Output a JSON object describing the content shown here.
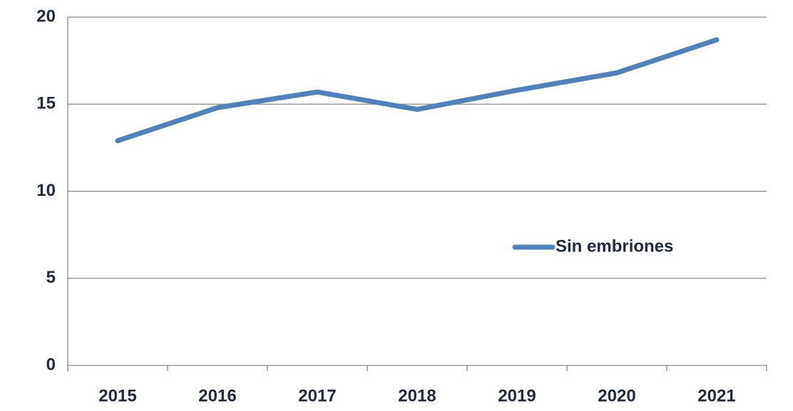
{
  "chart_data": {
    "type": "line",
    "categories": [
      "2015",
      "2016",
      "2017",
      "2018",
      "2019",
      "2020",
      "2021"
    ],
    "series": [
      {
        "name": "Sin embriones",
        "color": "#4f81bd",
        "values": [
          12.9,
          14.8,
          15.7,
          14.7,
          15.8,
          16.8,
          18.7
        ]
      }
    ],
    "ylim": [
      0,
      20
    ],
    "yticks": [
      0,
      5,
      10,
      15,
      20
    ],
    "grid": true,
    "legend": "right"
  }
}
